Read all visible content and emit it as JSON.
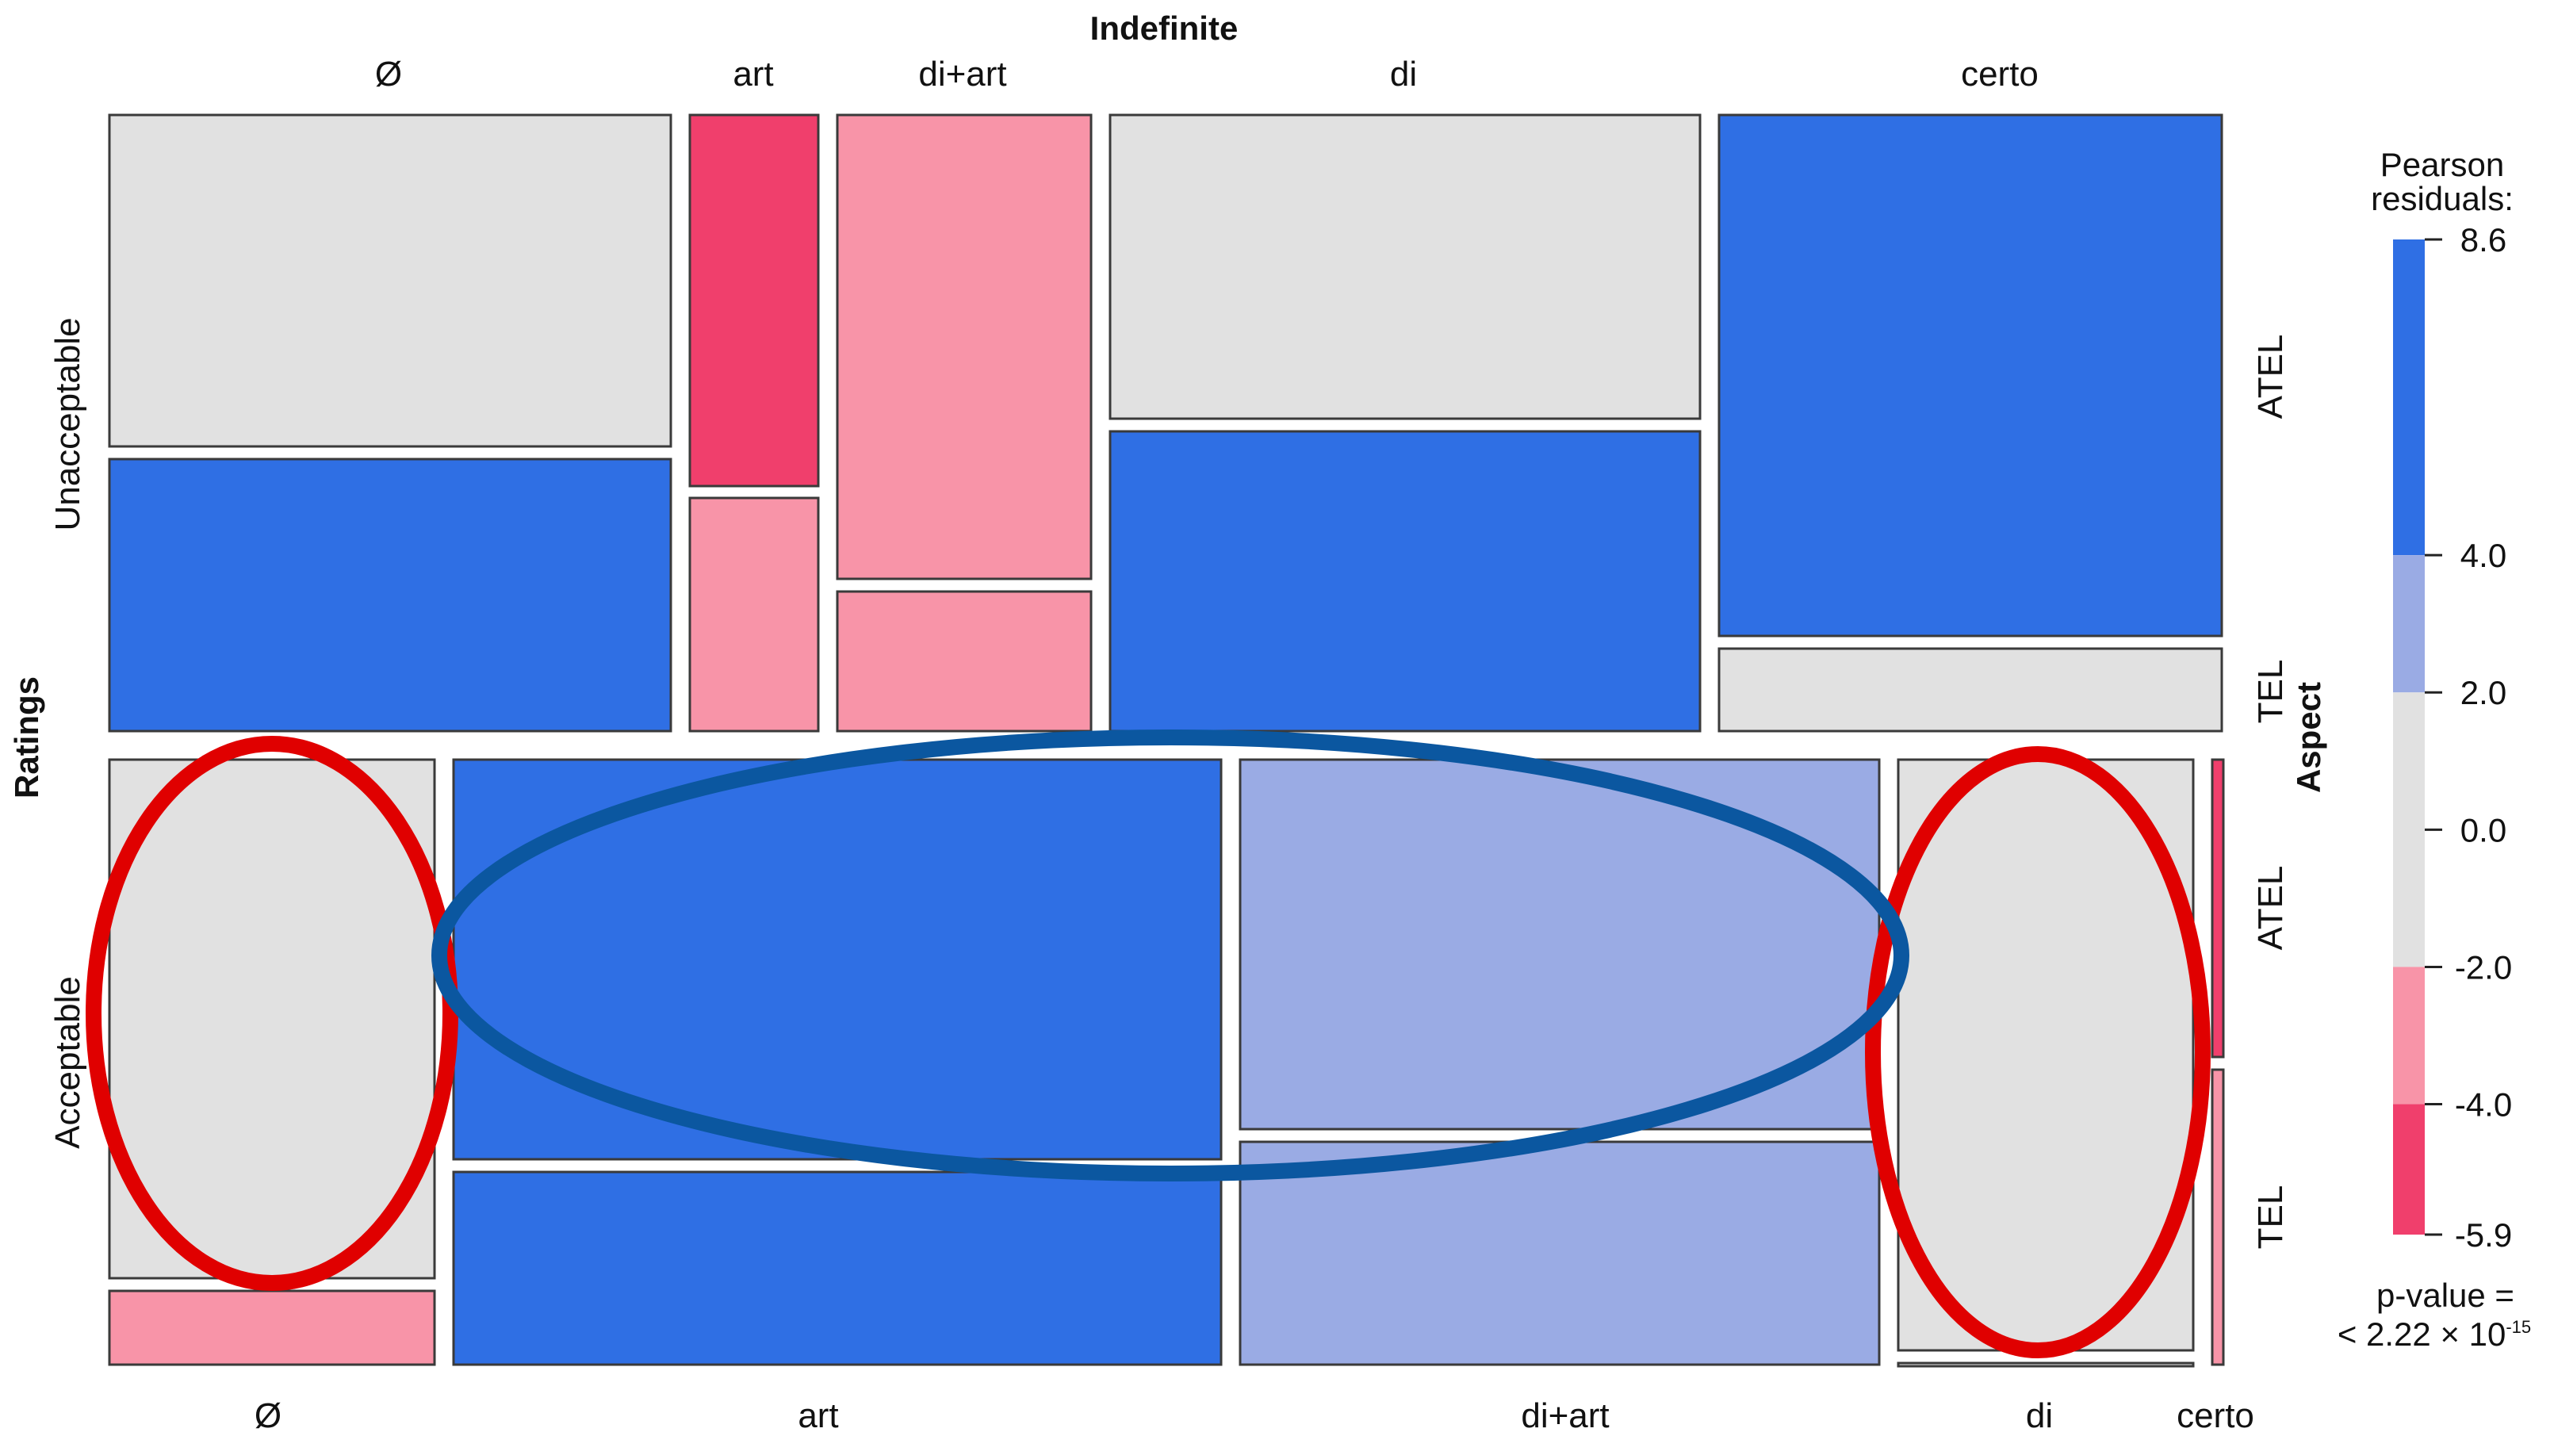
{
  "chart_data": {
    "type": "mosaic",
    "title": "Indefinite",
    "top_axis_label": "Indefinite",
    "left_axis_label": "Ratings",
    "right_axis_label": "Aspect",
    "row_labels": [
      "Unacceptable",
      "Acceptable"
    ],
    "aspect_labels": [
      "ATEL",
      "TEL"
    ],
    "top_column_labels": [
      "Ø",
      "art",
      "di+art",
      "di",
      "certo"
    ],
    "bottom_column_labels": [
      "Ø",
      "art",
      "di+art",
      "di",
      "certo"
    ],
    "legend": {
      "title_line1": "Pearson",
      "title_line2": "residuals:",
      "ticks": [
        "8.6",
        "4.0",
        "2.0",
        "0.0",
        "-2.0",
        "-4.0",
        "-5.9"
      ],
      "tick_values": [
        8.6,
        4.0,
        2.0,
        0.0,
        -2.0,
        -4.0,
        -5.9
      ],
      "bands": [
        {
          "from": 4.0,
          "to": 8.6,
          "color": "#2f6fe4"
        },
        {
          "from": 2.0,
          "to": 4.0,
          "color": "#9aabe4"
        },
        {
          "from": -2.0,
          "to": 2.0,
          "color": "#e1e1e1"
        },
        {
          "from": -4.0,
          "to": -2.0,
          "color": "#f894a8"
        },
        {
          "from": -5.9,
          "to": -4.0,
          "color": "#f03f6c"
        }
      ]
    },
    "cells": [
      {
        "rating": "Unacceptable",
        "indefinite": "Ø",
        "aspect": "ATEL",
        "band": "neutral"
      },
      {
        "rating": "Unacceptable",
        "indefinite": "Ø",
        "aspect": "TEL",
        "band": "high_pos"
      },
      {
        "rating": "Unacceptable",
        "indefinite": "art",
        "aspect": "ATEL",
        "band": "high_neg"
      },
      {
        "rating": "Unacceptable",
        "indefinite": "art",
        "aspect": "TEL",
        "band": "mid_neg"
      },
      {
        "rating": "Unacceptable",
        "indefinite": "di+art",
        "aspect": "ATEL",
        "band": "mid_neg"
      },
      {
        "rating": "Unacceptable",
        "indefinite": "di+art",
        "aspect": "TEL",
        "band": "mid_neg"
      },
      {
        "rating": "Unacceptable",
        "indefinite": "di",
        "aspect": "ATEL",
        "band": "neutral"
      },
      {
        "rating": "Unacceptable",
        "indefinite": "di",
        "aspect": "TEL",
        "band": "high_pos"
      },
      {
        "rating": "Unacceptable",
        "indefinite": "certo",
        "aspect": "ATEL",
        "band": "high_pos"
      },
      {
        "rating": "Unacceptable",
        "indefinite": "certo",
        "aspect": "TEL",
        "band": "neutral"
      },
      {
        "rating": "Acceptable",
        "indefinite": "Ø",
        "aspect": "ATEL",
        "band": "neutral"
      },
      {
        "rating": "Acceptable",
        "indefinite": "Ø",
        "aspect": "TEL",
        "band": "mid_neg"
      },
      {
        "rating": "Acceptable",
        "indefinite": "art",
        "aspect": "ATEL",
        "band": "high_pos"
      },
      {
        "rating": "Acceptable",
        "indefinite": "art",
        "aspect": "TEL",
        "band": "high_pos"
      },
      {
        "rating": "Acceptable",
        "indefinite": "di+art",
        "aspect": "ATEL",
        "band": "mid_pos"
      },
      {
        "rating": "Acceptable",
        "indefinite": "di+art",
        "aspect": "TEL",
        "band": "mid_pos"
      },
      {
        "rating": "Acceptable",
        "indefinite": "di",
        "aspect": "ATEL",
        "band": "neutral"
      },
      {
        "rating": "Acceptable",
        "indefinite": "di",
        "aspect": "TEL",
        "band": "neutral"
      },
      {
        "rating": "Acceptable",
        "indefinite": "certo",
        "aspect": "ATEL",
        "band": "high_neg"
      },
      {
        "rating": "Acceptable",
        "indefinite": "certo",
        "aspect": "TEL",
        "band": "mid_neg"
      }
    ],
    "band_colors": {
      "high_pos": "#2f6fe4",
      "mid_pos": "#9aabe4",
      "neutral": "#e1e1e1",
      "mid_neg": "#f894a8",
      "high_neg": "#f03f6c"
    },
    "annotation_colors": {
      "red_ellipse": "#e00000",
      "blue_ellipse": "#0b57a0"
    },
    "p_value_line1": "p-value =",
    "p_value_line2_prefix": "< 2.22 × 10",
    "p_value_exponent": "-15"
  }
}
